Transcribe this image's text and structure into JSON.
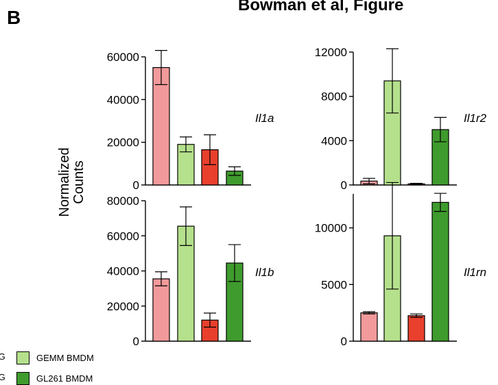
{
  "panel_letter": "B",
  "figure_title": "Bowman et al, Figure",
  "ylabel_line1": "Normalized",
  "ylabel_line2": "Counts",
  "legend_partial": [
    "IG",
    "IG"
  ],
  "legend": [
    {
      "label": "GEMM BMDM",
      "color": "#b5e08c"
    },
    {
      "label": "GL261 BMDM",
      "color": "#3f9b2d"
    }
  ],
  "bar_colors": [
    "#f29a9b",
    "#b5e08c",
    "#e8402d",
    "#3f9b2d"
  ],
  "chart_data": [
    {
      "type": "bar",
      "gene": "Il1a",
      "ylim": [
        0,
        60000
      ],
      "yticks": [
        0,
        20000,
        40000,
        60000
      ],
      "values": [
        55000,
        19000,
        16500,
        6500
      ],
      "errors": [
        8000,
        3500,
        7000,
        2000
      ]
    },
    {
      "type": "bar",
      "gene": "Il1r2",
      "ylim": [
        0,
        12000
      ],
      "yticks": [
        0,
        4000,
        8000,
        12000
      ],
      "values": [
        350,
        9400,
        100,
        5000
      ],
      "errors": [
        250,
        2900,
        50,
        1100
      ]
    },
    {
      "type": "bar",
      "gene": "Il1b",
      "ylim": [
        0,
        80000
      ],
      "yticks": [
        0,
        20000,
        40000,
        60000,
        80000
      ],
      "values": [
        35500,
        65500,
        12000,
        44500
      ],
      "errors": [
        4000,
        11000,
        4000,
        10500
      ]
    },
    {
      "type": "bar",
      "gene": "Il1rn",
      "ylim": [
        0,
        13000
      ],
      "yticks": [
        0,
        5000,
        10000
      ],
      "values": [
        2500,
        9300,
        2250,
        12250
      ],
      "errors": [
        100,
        4700,
        150,
        800
      ]
    }
  ]
}
